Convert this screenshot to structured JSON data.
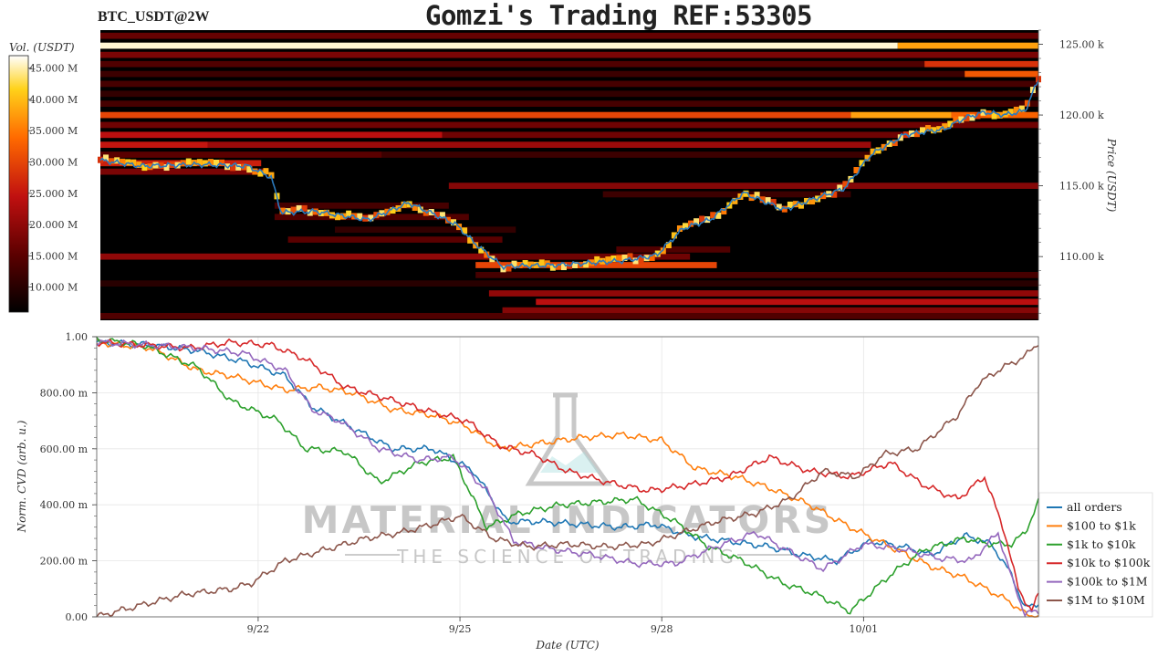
{
  "header": {
    "symbol": "BTC_USDT@2W",
    "title": "Gomzi's Trading REF:53305"
  },
  "watermark": {
    "brand": "MATERIAL INDICATORS",
    "tagline": "THE SCIENCE OF TRADING",
    "icon": "flask-icon"
  },
  "chart_data": [
    {
      "type": "heatmap",
      "name": "orderbook-liquidity-heatmap",
      "colorbar": {
        "label": "Vol. (USDT)",
        "ticks": [
          "45.000 M",
          "40.000 M",
          "35.000 M",
          "30.000 M",
          "25.000 M",
          "20.000 M",
          "15.000 M",
          "10.000 M"
        ],
        "values": [
          45,
          40,
          35,
          30,
          25,
          20,
          15,
          10
        ],
        "range": [
          6,
          47
        ],
        "colors": [
          "#000000",
          "#5a0000",
          "#c01010",
          "#ff6a00",
          "#ffd21a",
          "#ffffff"
        ]
      },
      "ylabel": "Price (USDT)",
      "y_ticks": [
        "125.00 k",
        "120.00 k",
        "115.00 k",
        "110.00 k"
      ],
      "y_tick_values": [
        125000,
        120000,
        115000,
        110000
      ],
      "ylim": [
        105500,
        126000
      ],
      "price_line_color": "#2b7bbf",
      "price": {
        "x": [
          0,
          0.6,
          1.5,
          2.2,
          2.55,
          2.7,
          3.2,
          4.0,
          4.6,
          5.3,
          5.6,
          6.0,
          6.8,
          7.8,
          8.3,
          8.7,
          9.1,
          9.6,
          10.2,
          10.6,
          11.1,
          11.5,
          12.0,
          12.6,
          12.9,
          13.2,
          13.5,
          13.8,
          14.0
        ],
        "y": [
          116800,
          116400,
          116500,
          116400,
          115600,
          113100,
          113200,
          112600,
          113800,
          112300,
          110900,
          109300,
          109400,
          109700,
          110100,
          112000,
          112600,
          114500,
          113300,
          114000,
          114800,
          117200,
          118600,
          119000,
          119800,
          120200,
          120000,
          120300,
          122500
        ]
      },
      "bands": [
        {
          "y": 125600,
          "x0": 0,
          "x1": 14,
          "v": 16
        },
        {
          "y": 124900,
          "x0": 0,
          "x1": 11.9,
          "v": 46
        },
        {
          "y": 124900,
          "x0": 11.9,
          "x1": 14,
          "v": 38
        },
        {
          "y": 124250,
          "x0": 0,
          "x1": 14,
          "v": 18
        },
        {
          "y": 123600,
          "x0": 0,
          "x1": 12.3,
          "v": 14
        },
        {
          "y": 123600,
          "x0": 12.3,
          "x1": 14,
          "v": 28
        },
        {
          "y": 122900,
          "x0": 0,
          "x1": 12.9,
          "v": 12
        },
        {
          "y": 122900,
          "x0": 12.9,
          "x1": 14,
          "v": 32
        },
        {
          "y": 122200,
          "x0": 0,
          "x1": 14,
          "v": 13
        },
        {
          "y": 121500,
          "x0": 0,
          "x1": 14,
          "v": 11
        },
        {
          "y": 120800,
          "x0": 0,
          "x1": 14,
          "v": 13
        },
        {
          "y": 120000,
          "x0": 0,
          "x1": 11.2,
          "v": 30
        },
        {
          "y": 120000,
          "x0": 11.2,
          "x1": 12.7,
          "v": 38
        },
        {
          "y": 120000,
          "x0": 12.7,
          "x1": 14,
          "v": 33
        },
        {
          "y": 119300,
          "x0": 0,
          "x1": 14,
          "v": 17
        },
        {
          "y": 118600,
          "x0": 0,
          "x1": 5.1,
          "v": 24
        },
        {
          "y": 118600,
          "x0": 5.1,
          "x1": 12.1,
          "v": 17
        },
        {
          "y": 117900,
          "x0": 0,
          "x1": 1.6,
          "v": 25
        },
        {
          "y": 117900,
          "x0": 1.6,
          "x1": 11.5,
          "v": 21
        },
        {
          "y": 117200,
          "x0": 0,
          "x1": 4.2,
          "v": 15
        },
        {
          "y": 117200,
          "x0": 4.2,
          "x1": 11.5,
          "v": 12
        },
        {
          "y": 116600,
          "x0": 0,
          "x1": 2.4,
          "v": 26
        },
        {
          "y": 116000,
          "x0": 0,
          "x1": 2.5,
          "v": 18
        },
        {
          "y": 115000,
          "x0": 5.2,
          "x1": 14,
          "v": 19
        },
        {
          "y": 114400,
          "x0": 7.5,
          "x1": 11.2,
          "v": 12
        },
        {
          "y": 113600,
          "x0": 2.6,
          "x1": 5.2,
          "v": 13
        },
        {
          "y": 112800,
          "x0": 2.6,
          "x1": 5.5,
          "v": 14
        },
        {
          "y": 111900,
          "x0": 3.5,
          "x1": 6.2,
          "v": 11
        },
        {
          "y": 111200,
          "x0": 2.8,
          "x1": 6.0,
          "v": 15
        },
        {
          "y": 110500,
          "x0": 7.7,
          "x1": 9.4,
          "v": 14
        },
        {
          "y": 110000,
          "x0": 0,
          "x1": 5.8,
          "v": 20
        },
        {
          "y": 110000,
          "x0": 5.8,
          "x1": 8.8,
          "v": 17
        },
        {
          "y": 109400,
          "x0": 5.6,
          "x1": 9.2,
          "v": 30
        },
        {
          "y": 108700,
          "x0": 5.6,
          "x1": 14,
          "v": 13
        },
        {
          "y": 108100,
          "x0": 0,
          "x1": 14,
          "v": 10
        },
        {
          "y": 107400,
          "x0": 5.8,
          "x1": 14,
          "v": 20
        },
        {
          "y": 106800,
          "x0": 6.5,
          "x1": 14,
          "v": 24
        },
        {
          "y": 106200,
          "x0": 6.0,
          "x1": 14,
          "v": 19
        },
        {
          "y": 105800,
          "x0": 0,
          "x1": 14,
          "v": 14
        }
      ]
    },
    {
      "type": "line",
      "name": "normalized-cvd",
      "xlabel": "Date (UTC)",
      "ylabel": "Norm. CVD (arb. u.)",
      "x_ticks": [
        "9/22",
        "9/25",
        "9/28",
        "10/01"
      ],
      "x_tick_values": [
        2.4,
        5.4,
        8.4,
        11.4
      ],
      "xlim": [
        0,
        14
      ],
      "y_ticks": [
        "1.00",
        "800.00 m",
        "600.00 m",
        "400.00 m",
        "200.00 m",
        "0.00"
      ],
      "y_tick_values": [
        1.0,
        0.8,
        0.6,
        0.4,
        0.2,
        0.0
      ],
      "ylim": [
        0,
        1.0
      ],
      "grid": true,
      "legend_position": "bottom-right",
      "series": [
        {
          "name": "all orders",
          "color": "#1f77b4",
          "x": [
            0,
            0.8,
            1.5,
            2.2,
            2.8,
            3.2,
            3.6,
            4.4,
            5.0,
            5.6,
            6.1,
            6.6,
            7.2,
            7.8,
            8.3,
            8.8,
            9.4,
            10.0,
            10.5,
            11.0,
            11.5,
            12.0,
            12.4,
            12.9,
            13.3,
            13.6,
            13.8,
            14.0
          ],
          "y": [
            0.98,
            0.97,
            0.95,
            0.91,
            0.86,
            0.75,
            0.7,
            0.6,
            0.6,
            0.52,
            0.34,
            0.34,
            0.33,
            0.32,
            0.33,
            0.29,
            0.27,
            0.25,
            0.22,
            0.2,
            0.27,
            0.25,
            0.22,
            0.29,
            0.26,
            0.15,
            0.03,
            0.05
          ]
        },
        {
          "name": "$100 to $1k",
          "color": "#ff7f0e",
          "x": [
            0,
            0.8,
            1.5,
            2.0,
            2.8,
            3.3,
            3.8,
            4.4,
            5.0,
            5.5,
            6.0,
            6.6,
            7.2,
            7.8,
            8.4,
            8.9,
            9.5,
            10.0,
            10.6,
            11.2,
            11.8,
            12.4,
            12.9,
            13.3,
            13.6,
            13.8,
            14.0
          ],
          "y": [
            0.98,
            0.96,
            0.88,
            0.86,
            0.81,
            0.82,
            0.8,
            0.74,
            0.72,
            0.68,
            0.6,
            0.62,
            0.64,
            0.65,
            0.63,
            0.53,
            0.5,
            0.46,
            0.4,
            0.32,
            0.25,
            0.18,
            0.14,
            0.09,
            0.05,
            0.01,
            0.0
          ]
        },
        {
          "name": "$1k to $10k",
          "color": "#2ca02c",
          "x": [
            0,
            0.7,
            1.5,
            2.0,
            2.7,
            3.1,
            3.7,
            4.2,
            4.8,
            5.3,
            5.8,
            6.3,
            6.9,
            7.5,
            8.0,
            8.6,
            9.1,
            9.6,
            10.2,
            10.7,
            11.2,
            11.8,
            12.3,
            12.9,
            13.3,
            13.6,
            13.8,
            14.0
          ],
          "y": [
            0.99,
            0.97,
            0.89,
            0.77,
            0.7,
            0.6,
            0.59,
            0.48,
            0.55,
            0.57,
            0.32,
            0.37,
            0.4,
            0.41,
            0.42,
            0.34,
            0.25,
            0.2,
            0.12,
            0.08,
            0.02,
            0.15,
            0.24,
            0.28,
            0.26,
            0.26,
            0.3,
            0.41
          ]
        },
        {
          "name": "$10k to $100k",
          "color": "#d62728",
          "x": [
            0,
            0.7,
            1.4,
            2.0,
            2.6,
            3.1,
            3.7,
            4.3,
            5.0,
            5.5,
            6.0,
            6.5,
            7.0,
            7.6,
            8.2,
            8.8,
            9.4,
            10.0,
            10.6,
            11.2,
            11.8,
            12.3,
            12.8,
            13.2,
            13.5,
            13.7,
            13.9,
            14.0
          ],
          "y": [
            0.98,
            0.97,
            0.96,
            0.98,
            0.97,
            0.92,
            0.82,
            0.78,
            0.73,
            0.7,
            0.61,
            0.58,
            0.52,
            0.48,
            0.45,
            0.47,
            0.5,
            0.57,
            0.52,
            0.5,
            0.55,
            0.47,
            0.42,
            0.5,
            0.3,
            0.1,
            0.02,
            0.08
          ]
        },
        {
          "name": "$100k to $1M",
          "color": "#9467bd",
          "x": [
            0,
            0.8,
            1.5,
            2.2,
            2.8,
            3.2,
            3.6,
            4.2,
            4.8,
            5.3,
            5.8,
            6.2,
            6.8,
            7.4,
            8.0,
            8.6,
            9.2,
            9.8,
            10.4,
            10.8,
            11.4,
            12.0,
            12.5,
            13.0,
            13.4,
            13.6,
            13.8,
            14.0
          ],
          "y": [
            0.98,
            0.97,
            0.96,
            0.94,
            0.88,
            0.74,
            0.7,
            0.6,
            0.56,
            0.57,
            0.45,
            0.27,
            0.24,
            0.22,
            0.19,
            0.19,
            0.25,
            0.3,
            0.22,
            0.17,
            0.26,
            0.24,
            0.21,
            0.2,
            0.3,
            0.14,
            0.01,
            0.02
          ]
        },
        {
          "name": "$1M to $10M",
          "color": "#8c564b",
          "x": [
            0,
            0.3,
            0.8,
            1.3,
            2.0,
            2.3,
            2.8,
            3.4,
            4.0,
            4.5,
            5.0,
            5.4,
            5.9,
            6.4,
            7.0,
            7.6,
            8.2,
            8.7,
            9.2,
            9.8,
            10.3,
            10.8,
            11.3,
            11.7,
            12.2,
            12.8,
            13.1,
            13.4,
            13.8,
            14.0
          ],
          "y": [
            0.0,
            0.02,
            0.05,
            0.08,
            0.1,
            0.12,
            0.2,
            0.24,
            0.28,
            0.3,
            0.33,
            0.36,
            0.28,
            0.25,
            0.26,
            0.25,
            0.26,
            0.3,
            0.34,
            0.37,
            0.42,
            0.52,
            0.5,
            0.58,
            0.6,
            0.72,
            0.83,
            0.88,
            0.93,
            0.98
          ]
        }
      ]
    }
  ]
}
